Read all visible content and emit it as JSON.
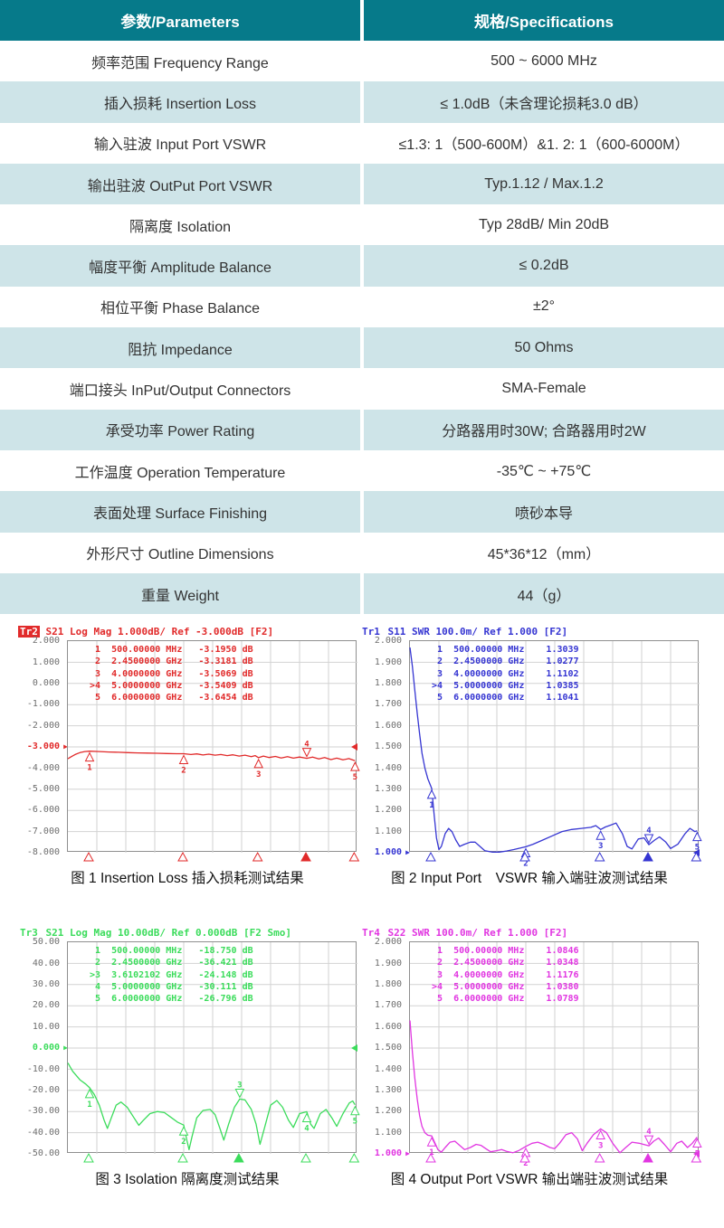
{
  "table": {
    "header": {
      "param": "参数/Parameters",
      "spec": "规格/Specifications"
    },
    "rows": [
      {
        "param": "频率范围 Frequency Range",
        "spec": "500 ~ 6000 MHz"
      },
      {
        "param": "插入损耗 Insertion Loss",
        "spec": "≤ 1.0dB（未含理论损耗3.0 dB）"
      },
      {
        "param": "输入驻波 Input Port VSWR",
        "spec": "≤1.3: 1（500-600M）&1. 2: 1（600-6000M）"
      },
      {
        "param": "输出驻波 OutPut Port VSWR",
        "spec": "Typ.1.12 / Max.1.2"
      },
      {
        "param": "隔离度 Isolation",
        "spec": "Typ 28dB/ Min 20dB"
      },
      {
        "param": "幅度平衡 Amplitude Balance",
        "spec": "≤ 0.2dB"
      },
      {
        "param": "相位平衡 Phase Balance",
        "spec": "±2°"
      },
      {
        "param": "阻抗 Impedance",
        "spec": "50 Ohms"
      },
      {
        "param": "端口接头 InPut/Output Connectors",
        "spec": "SMA-Female"
      },
      {
        "param": "承受功率 Power Rating",
        "spec": "分路器用时30W; 合路器用时2W"
      },
      {
        "param": "工作温度 Operation Temperature",
        "spec": "-35℃ ~ +75℃"
      },
      {
        "param": "表面处理 Surface Finishing",
        "spec": "喷砂本导"
      },
      {
        "param": "外形尺寸 Outline Dimensions",
        "spec": "45*36*12（mm）"
      },
      {
        "param": "重量 Weight",
        "spec": "44（g）"
      }
    ]
  },
  "colors": {
    "header_bg": "#067a8a",
    "row_alt_bg": "#cee4e8",
    "grid": "#d2d2d2",
    "plot_border": "#8f8f8f",
    "axis_text": "#6e6e6e"
  },
  "chart_data": [
    {
      "id": "insertion-loss",
      "type": "line",
      "tr_label": "Tr2",
      "tr_inverse": true,
      "title": " S21 Log Mag 1.000dB/ Ref -3.000dB [F2]",
      "color": "#e12a2a",
      "caption": "图 1 Insertion Loss 插入损耗测试结果",
      "xmin": 0.05,
      "xmax": 6.05,
      "ymin": -8,
      "ymax": 2,
      "yticks": [
        "2.000",
        "1.000",
        "0.000",
        "-1.000",
        "-2.000",
        "-3.000",
        "-4.000",
        "-5.000",
        "-6.000",
        "-7.000",
        "-8.000"
      ],
      "ref": -3,
      "ref_label": "-3.000",
      "marker_rows": [
        [
          "1",
          "500.00000",
          "MHz",
          "-3.1950",
          "dB"
        ],
        [
          "2",
          "2.4500000",
          "GHz",
          "-3.3181",
          "dB"
        ],
        [
          "3",
          "4.0000000",
          "GHz",
          "-3.5069",
          "dB"
        ],
        [
          ">4",
          "5.0000000",
          "GHz",
          "-3.5409",
          "dB"
        ],
        [
          "5",
          "6.0000000",
          "GHz",
          "-3.6454",
          "dB"
        ]
      ],
      "markers": [
        {
          "n": "1",
          "x": 0.5,
          "y": -3.195,
          "active": false
        },
        {
          "n": "2",
          "x": 2.45,
          "y": -3.318,
          "active": false
        },
        {
          "n": "3",
          "x": 4.0,
          "y": -3.507,
          "active": false
        },
        {
          "n": "4",
          "x": 5.0,
          "y": -3.541,
          "active": true
        },
        {
          "n": "5",
          "x": 6.0,
          "y": -3.645,
          "active": false
        }
      ],
      "trace": [
        [
          0.05,
          -3.56
        ],
        [
          0.12,
          -3.46
        ],
        [
          0.2,
          -3.36
        ],
        [
          0.3,
          -3.27
        ],
        [
          0.4,
          -3.22
        ],
        [
          0.5,
          -3.2
        ],
        [
          0.7,
          -3.22
        ],
        [
          0.9,
          -3.24
        ],
        [
          1.1,
          -3.25
        ],
        [
          1.3,
          -3.27
        ],
        [
          1.5,
          -3.28
        ],
        [
          1.7,
          -3.29
        ],
        [
          1.9,
          -3.3
        ],
        [
          2.1,
          -3.31
        ],
        [
          2.3,
          -3.32
        ],
        [
          2.45,
          -3.32
        ],
        [
          2.6,
          -3.36
        ],
        [
          2.72,
          -3.33
        ],
        [
          2.85,
          -3.38
        ],
        [
          2.97,
          -3.34
        ],
        [
          3.1,
          -3.39
        ],
        [
          3.22,
          -3.36
        ],
        [
          3.35,
          -3.41
        ],
        [
          3.47,
          -3.37
        ],
        [
          3.6,
          -3.43
        ],
        [
          3.72,
          -3.39
        ],
        [
          3.85,
          -3.46
        ],
        [
          3.93,
          -3.41
        ],
        [
          4.0,
          -3.51
        ],
        [
          4.1,
          -3.43
        ],
        [
          4.22,
          -3.5
        ],
        [
          4.35,
          -3.45
        ],
        [
          4.47,
          -3.52
        ],
        [
          4.6,
          -3.46
        ],
        [
          4.72,
          -3.53
        ],
        [
          4.85,
          -3.48
        ],
        [
          5.0,
          -3.54
        ],
        [
          5.12,
          -3.48
        ],
        [
          5.25,
          -3.57
        ],
        [
          5.37,
          -3.5
        ],
        [
          5.5,
          -3.6
        ],
        [
          5.62,
          -3.53
        ],
        [
          5.75,
          -3.61
        ],
        [
          5.87,
          -3.55
        ],
        [
          6.0,
          -3.65
        ]
      ]
    },
    {
      "id": "input-vswr",
      "type": "line",
      "tr_label": "Tr1",
      "tr_inverse": false,
      "title": " S11 SWR 100.0m/ Ref 1.000 [F2]",
      "color": "#3535d2",
      "caption": "图 2 Input Port　VSWR 输入端驻波测试结果",
      "xmin": 0.05,
      "xmax": 6.05,
      "ymin": 1,
      "ymax": 2,
      "yticks": [
        "2.000",
        "1.900",
        "1.800",
        "1.700",
        "1.600",
        "1.500",
        "1.400",
        "1.300",
        "1.200",
        "1.100",
        "1.000"
      ],
      "ref": 1,
      "ref_label": "1.000",
      "marker_rows": [
        [
          "1",
          "500.00000",
          "MHz",
          "1.3039",
          ""
        ],
        [
          "2",
          "2.4500000",
          "GHz",
          "1.0277",
          ""
        ],
        [
          "3",
          "4.0000000",
          "GHz",
          "1.1102",
          ""
        ],
        [
          ">4",
          "5.0000000",
          "GHz",
          "1.0385",
          ""
        ],
        [
          "5",
          "6.0000000",
          "GHz",
          "1.1041",
          ""
        ]
      ],
      "markers": [
        {
          "n": "1",
          "x": 0.5,
          "y": 1.3039,
          "active": false
        },
        {
          "n": "2",
          "x": 2.45,
          "y": 1.0277,
          "active": false
        },
        {
          "n": "3",
          "x": 4.0,
          "y": 1.1102,
          "active": false
        },
        {
          "n": "4",
          "x": 5.0,
          "y": 1.0385,
          "active": true
        },
        {
          "n": "5",
          "x": 6.0,
          "y": 1.1041,
          "active": false
        }
      ],
      "trace": [
        [
          0.05,
          1.97
        ],
        [
          0.1,
          1.88
        ],
        [
          0.15,
          1.77
        ],
        [
          0.2,
          1.66
        ],
        [
          0.25,
          1.56
        ],
        [
          0.3,
          1.47
        ],
        [
          0.36,
          1.4
        ],
        [
          0.42,
          1.35
        ],
        [
          0.5,
          1.304
        ],
        [
          0.55,
          1.18
        ],
        [
          0.6,
          1.07
        ],
        [
          0.65,
          1.015
        ],
        [
          0.7,
          1.03
        ],
        [
          0.78,
          1.09
        ],
        [
          0.85,
          1.115
        ],
        [
          0.92,
          1.1
        ],
        [
          1.0,
          1.06
        ],
        [
          1.08,
          1.03
        ],
        [
          1.18,
          1.04
        ],
        [
          1.3,
          1.05
        ],
        [
          1.4,
          1.05
        ],
        [
          1.5,
          1.03
        ],
        [
          1.6,
          1.01
        ],
        [
          1.75,
          1.003
        ],
        [
          1.9,
          1.003
        ],
        [
          2.05,
          1.008
        ],
        [
          2.2,
          1.015
        ],
        [
          2.45,
          1.028
        ],
        [
          2.6,
          1.04
        ],
        [
          2.8,
          1.06
        ],
        [
          3.0,
          1.08
        ],
        [
          3.2,
          1.1
        ],
        [
          3.4,
          1.11
        ],
        [
          3.6,
          1.115
        ],
        [
          3.8,
          1.12
        ],
        [
          3.9,
          1.128
        ],
        [
          4.0,
          1.11
        ],
        [
          4.1,
          1.122
        ],
        [
          4.2,
          1.13
        ],
        [
          4.32,
          1.14
        ],
        [
          4.45,
          1.09
        ],
        [
          4.55,
          1.03
        ],
        [
          4.65,
          1.018
        ],
        [
          4.78,
          1.065
        ],
        [
          4.9,
          1.07
        ],
        [
          5.0,
          1.038
        ],
        [
          5.12,
          1.06
        ],
        [
          5.22,
          1.075
        ],
        [
          5.35,
          1.05
        ],
        [
          5.45,
          1.02
        ],
        [
          5.6,
          1.04
        ],
        [
          5.75,
          1.09
        ],
        [
          5.85,
          1.115
        ],
        [
          5.95,
          1.1
        ],
        [
          6.0,
          1.104
        ]
      ]
    },
    {
      "id": "isolation",
      "type": "line",
      "tr_label": "Tr3",
      "tr_inverse": false,
      "title": " S21 Log Mag 10.00dB/ Ref 0.000dB [F2 Smo]",
      "color": "#3bdc5b",
      "caption": "图 3 Isolation 隔离度测试结果",
      "xmin": 0.05,
      "xmax": 6.05,
      "ymin": -50,
      "ymax": 50,
      "yticks": [
        "50.00",
        "40.00",
        "30.00",
        "20.00",
        "10.00",
        "0.000",
        "-10.00",
        "-20.00",
        "-30.00",
        "-40.00",
        "-50.00"
      ],
      "ref": 0,
      "ref_label": "0.000",
      "marker_rows": [
        [
          "1",
          "500.00000",
          "MHz",
          "-18.750",
          "dB"
        ],
        [
          "2",
          "2.4500000",
          "GHz",
          "-36.421",
          "dB"
        ],
        [
          ">3",
          "3.6102102",
          "GHz",
          "-24.148",
          "dB"
        ],
        [
          "4",
          "5.0000000",
          "GHz",
          "-30.111",
          "dB"
        ],
        [
          "5",
          "6.0000000",
          "GHz",
          "-26.796",
          "dB"
        ]
      ],
      "markers": [
        {
          "n": "1",
          "x": 0.5,
          "y": -18.75,
          "active": false
        },
        {
          "n": "2",
          "x": 2.45,
          "y": -36.421,
          "active": false
        },
        {
          "n": "3",
          "x": 3.6102102,
          "y": -24.148,
          "active": true
        },
        {
          "n": "4",
          "x": 5.0,
          "y": -30.111,
          "active": false
        },
        {
          "n": "5",
          "x": 6.0,
          "y": -26.796,
          "active": false
        }
      ],
      "trace": [
        [
          0.05,
          -7
        ],
        [
          0.15,
          -11
        ],
        [
          0.3,
          -15
        ],
        [
          0.42,
          -17
        ],
        [
          0.5,
          -18.75
        ],
        [
          0.6,
          -22
        ],
        [
          0.7,
          -27
        ],
        [
          0.8,
          -34
        ],
        [
          0.87,
          -38
        ],
        [
          0.95,
          -33
        ],
        [
          1.05,
          -27
        ],
        [
          1.15,
          -25.5
        ],
        [
          1.28,
          -28
        ],
        [
          1.42,
          -33
        ],
        [
          1.52,
          -36.5
        ],
        [
          1.62,
          -34
        ],
        [
          1.75,
          -31
        ],
        [
          1.9,
          -30
        ],
        [
          2.05,
          -30.5
        ],
        [
          2.2,
          -33
        ],
        [
          2.32,
          -35
        ],
        [
          2.45,
          -36.4
        ],
        [
          2.52,
          -44
        ],
        [
          2.56,
          -48
        ],
        [
          2.62,
          -42
        ],
        [
          2.72,
          -33
        ],
        [
          2.85,
          -29.5
        ],
        [
          3.0,
          -29
        ],
        [
          3.1,
          -31.5
        ],
        [
          3.2,
          -38
        ],
        [
          3.28,
          -43.5
        ],
        [
          3.38,
          -36
        ],
        [
          3.5,
          -28
        ],
        [
          3.61,
          -24.1
        ],
        [
          3.72,
          -24.5
        ],
        [
          3.85,
          -29
        ],
        [
          3.95,
          -36
        ],
        [
          4.03,
          -45.5
        ],
        [
          4.12,
          -38
        ],
        [
          4.25,
          -27
        ],
        [
          4.38,
          -24.8
        ],
        [
          4.5,
          -28
        ],
        [
          4.62,
          -34
        ],
        [
          4.72,
          -37.5
        ],
        [
          4.85,
          -31
        ],
        [
          5.0,
          -30.1
        ],
        [
          5.08,
          -36
        ],
        [
          5.15,
          -38
        ],
        [
          5.28,
          -31
        ],
        [
          5.4,
          -29
        ],
        [
          5.52,
          -33
        ],
        [
          5.62,
          -37
        ],
        [
          5.75,
          -31
        ],
        [
          5.88,
          -26
        ],
        [
          5.95,
          -25
        ],
        [
          6.0,
          -26.8
        ]
      ]
    },
    {
      "id": "output-vswr",
      "type": "line",
      "tr_label": "Tr4",
      "tr_inverse": false,
      "title": " S22 SWR 100.0m/ Ref 1.000 [F2]",
      "color": "#e136e1",
      "caption": "图 4 Output Port VSWR 输出端驻波测试结果",
      "xmin": 0.05,
      "xmax": 6.05,
      "ymin": 1,
      "ymax": 2,
      "yticks": [
        "2.000",
        "1.900",
        "1.800",
        "1.700",
        "1.600",
        "1.500",
        "1.400",
        "1.300",
        "1.200",
        "1.100",
        "1.000"
      ],
      "ref": 1,
      "ref_label": "1.000",
      "marker_rows": [
        [
          "1",
          "500.00000",
          "MHz",
          "1.0846",
          ""
        ],
        [
          "2",
          "2.4500000",
          "GHz",
          "1.0348",
          ""
        ],
        [
          "3",
          "4.0000000",
          "GHz",
          "1.1176",
          ""
        ],
        [
          ">4",
          "5.0000000",
          "GHz",
          "1.0380",
          ""
        ],
        [
          "5",
          "6.0000000",
          "GHz",
          "1.0789",
          ""
        ]
      ],
      "markers": [
        {
          "n": "1",
          "x": 0.5,
          "y": 1.0846,
          "active": false
        },
        {
          "n": "2",
          "x": 2.45,
          "y": 1.0348,
          "active": false
        },
        {
          "n": "3",
          "x": 4.0,
          "y": 1.1176,
          "active": false
        },
        {
          "n": "4",
          "x": 5.0,
          "y": 1.038,
          "active": true
        },
        {
          "n": "5",
          "x": 6.0,
          "y": 1.0789,
          "active": false
        }
      ],
      "trace": [
        [
          0.05,
          1.63
        ],
        [
          0.1,
          1.48
        ],
        [
          0.15,
          1.36
        ],
        [
          0.2,
          1.26
        ],
        [
          0.25,
          1.18
        ],
        [
          0.3,
          1.13
        ],
        [
          0.36,
          1.1
        ],
        [
          0.42,
          1.088
        ],
        [
          0.5,
          1.085
        ],
        [
          0.57,
          1.05
        ],
        [
          0.63,
          1.02
        ],
        [
          0.7,
          1.008
        ],
        [
          0.78,
          1.03
        ],
        [
          0.88,
          1.055
        ],
        [
          0.98,
          1.06
        ],
        [
          1.08,
          1.04
        ],
        [
          1.18,
          1.02
        ],
        [
          1.3,
          1.03
        ],
        [
          1.42,
          1.045
        ],
        [
          1.52,
          1.04
        ],
        [
          1.62,
          1.025
        ],
        [
          1.72,
          1.01
        ],
        [
          1.85,
          1.015
        ],
        [
          1.95,
          1.02
        ],
        [
          2.05,
          1.012
        ],
        [
          2.18,
          1.005
        ],
        [
          2.3,
          1.015
        ],
        [
          2.45,
          1.035
        ],
        [
          2.58,
          1.05
        ],
        [
          2.7,
          1.055
        ],
        [
          2.82,
          1.045
        ],
        [
          2.95,
          1.03
        ],
        [
          3.05,
          1.025
        ],
        [
          3.15,
          1.05
        ],
        [
          3.28,
          1.09
        ],
        [
          3.4,
          1.1
        ],
        [
          3.52,
          1.07
        ],
        [
          3.62,
          1.015
        ],
        [
          3.72,
          1.05
        ],
        [
          3.85,
          1.09
        ],
        [
          4.0,
          1.118
        ],
        [
          4.12,
          1.1
        ],
        [
          4.25,
          1.05
        ],
        [
          4.4,
          1.005
        ],
        [
          4.52,
          1.03
        ],
        [
          4.65,
          1.055
        ],
        [
          4.8,
          1.05
        ],
        [
          5.0,
          1.038
        ],
        [
          5.1,
          1.06
        ],
        [
          5.2,
          1.075
        ],
        [
          5.32,
          1.045
        ],
        [
          5.45,
          1.01
        ],
        [
          5.58,
          1.05
        ],
        [
          5.68,
          1.06
        ],
        [
          5.8,
          1.03
        ],
        [
          5.9,
          1.05
        ],
        [
          6.0,
          1.079
        ]
      ]
    }
  ]
}
